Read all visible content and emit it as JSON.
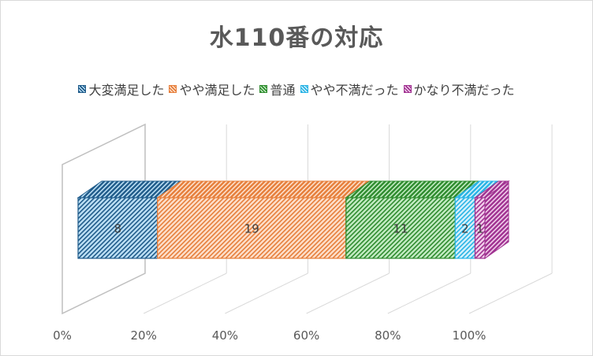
{
  "chart_data": {
    "type": "bar",
    "orientation": "horizontal",
    "stacking": "percent",
    "three_d": true,
    "title": "水110番の対応",
    "xlabel": "",
    "ylabel": "",
    "xlim": [
      0,
      100
    ],
    "x_ticks": [
      "0%",
      "20%",
      "40%",
      "60%",
      "80%",
      "100%"
    ],
    "legend_position": "top",
    "categories": [
      ""
    ],
    "series": [
      {
        "name": "大変満足した",
        "values": [
          8
        ],
        "label": "8",
        "color": "#1f5b8a",
        "fill": "#bde0f5"
      },
      {
        "name": "やや満足した",
        "values": [
          19
        ],
        "label": "19",
        "color": "#e67e3a",
        "fill": "#fde0cc"
      },
      {
        "name": "普通",
        "values": [
          11
        ],
        "label": "11",
        "color": "#2e8b2e",
        "fill": "#c4ecc4"
      },
      {
        "name": "やや不満だった",
        "values": [
          2
        ],
        "label": "2",
        "color": "#27b3e5",
        "fill": "#d6f1fb"
      },
      {
        "name": "かなり不満だった",
        "values": [
          1
        ],
        "label": "1",
        "color": "#a03291",
        "fill": "#f2d0ec"
      }
    ]
  }
}
